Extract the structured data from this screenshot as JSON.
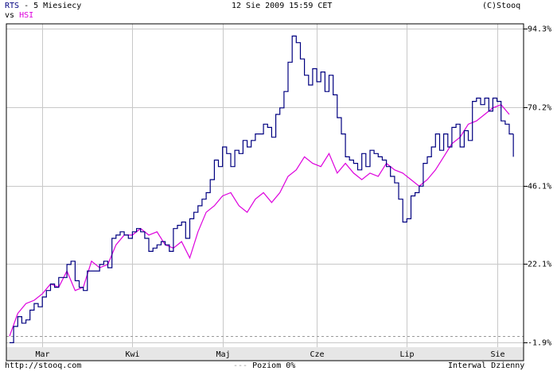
{
  "header": {
    "series_main": "RTS",
    "title_rest": " - 5 Miesiecy",
    "vs_label": "vs",
    "series_compare": "HSI",
    "timestamp": "12 Sie 2009 15:59 CET",
    "copyright": "(C)Stooq"
  },
  "footer": {
    "source_url": "http://stooq.com",
    "baseline_label": "Poziom 0%",
    "interval_label": "Interwal Dzienny"
  },
  "colors": {
    "rts": "#000080",
    "hsi": "#dd00dd",
    "grid": "#c8c8c8",
    "axis_band": "#e6e6e6",
    "baseline": "#999999"
  },
  "chart_data": {
    "type": "line",
    "y_unit": "%",
    "ylim": [
      -1.9,
      94.3
    ],
    "y_ticks": [
      94.3,
      70.2,
      46.1,
      22.1,
      -1.9
    ],
    "y_tick_labels": [
      "94.3%",
      "70.2%",
      "46.1%",
      "22.1%",
      "-1.9%"
    ],
    "x_ticks": [
      "Mar",
      "Kwi",
      "Maj",
      "Cze",
      "Lip",
      "Sie"
    ],
    "x_tick_index": [
      8,
      30,
      52,
      75,
      97,
      119
    ],
    "baseline": 0,
    "series": [
      {
        "name": "RTS",
        "style": "bar-close",
        "values": [
          -2,
          3,
          6,
          4,
          5,
          8,
          10,
          9,
          12,
          14,
          16,
          15,
          18,
          18,
          22,
          23,
          17,
          15,
          14,
          20,
          20,
          20,
          22,
          23,
          21,
          30,
          31,
          32,
          31,
          30,
          32,
          33,
          32,
          30,
          26,
          27,
          28,
          29,
          28,
          26,
          33,
          34,
          35,
          30,
          36,
          38,
          40,
          42,
          44,
          48,
          54,
          52,
          58,
          56,
          52,
          57,
          56,
          60,
          58,
          60,
          62,
          62,
          65,
          64,
          61,
          68,
          70,
          75,
          84,
          92,
          90,
          85,
          80,
          77,
          82,
          78,
          81,
          75,
          80,
          74,
          67,
          62,
          55,
          54,
          53,
          51,
          56,
          52,
          57,
          56,
          55,
          54,
          52,
          49,
          47,
          42,
          35,
          36,
          43,
          44,
          46,
          53,
          55,
          58,
          62,
          57,
          62,
          58,
          64,
          65,
          58,
          63,
          60,
          72,
          73,
          71,
          73,
          69,
          73,
          72,
          66,
          65,
          62
        ]
      },
      {
        "name": "HSI",
        "style": "line",
        "x_index": [
          0,
          2,
          4,
          6,
          8,
          10,
          12,
          14,
          16,
          18,
          20,
          22,
          24,
          26,
          28,
          30,
          32,
          34,
          36,
          38,
          40,
          42,
          44,
          46,
          48,
          50,
          52,
          54,
          56,
          58,
          60,
          62,
          64,
          66,
          68,
          70,
          72,
          74,
          76,
          78,
          80,
          82,
          84,
          86,
          88,
          90,
          92,
          94,
          96,
          98,
          100,
          102,
          104,
          106,
          108,
          110,
          112,
          114,
          116,
          118,
          120,
          122
        ],
        "values": [
          0,
          7,
          10,
          11,
          13,
          16,
          15,
          20,
          14,
          15,
          23,
          21,
          22,
          28,
          31,
          31,
          33,
          31,
          32,
          28,
          27,
          29,
          24,
          32,
          38,
          40,
          43,
          44,
          40,
          38,
          42,
          44,
          41,
          44,
          49,
          51,
          55,
          53,
          52,
          56,
          50,
          53,
          50,
          48,
          50,
          49,
          53,
          51,
          50,
          48,
          46,
          48,
          51,
          55,
          59,
          61,
          65,
          66,
          68,
          70,
          71,
          68
        ]
      }
    ]
  }
}
